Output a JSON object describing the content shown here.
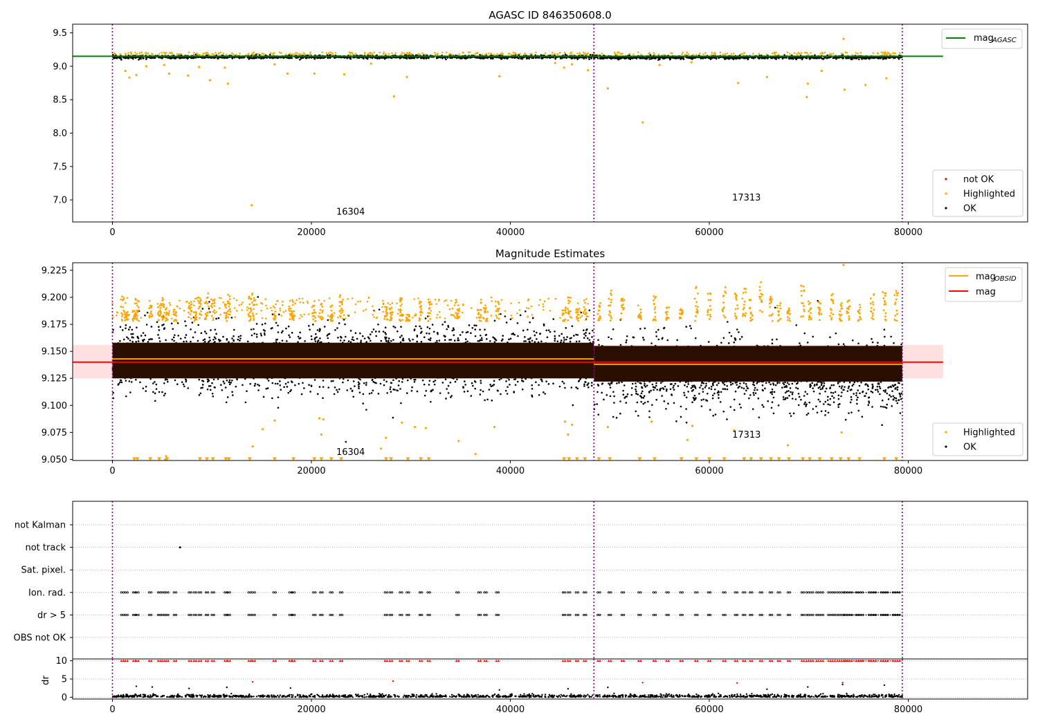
{
  "title": "AGASC ID 846350608.0",
  "chart_data": [
    {
      "type": "scatter",
      "title": "AGASC ID 846350608.0",
      "xlim": [
        -4000,
        92000
      ],
      "ylim": [
        6.67,
        9.63
      ],
      "x_ticks": [
        0,
        20000,
        40000,
        60000,
        80000
      ],
      "y_ticks": [
        7.0,
        7.5,
        8.0,
        8.5,
        9.0,
        9.5
      ],
      "obsid_boundaries": [
        0,
        48400,
        79400
      ],
      "obsid_labels": [
        {
          "text": "16304",
          "x": 22500,
          "y": 6.78
        },
        {
          "text": "17313",
          "x": 62300,
          "y": 6.99
        }
      ],
      "lines": [
        {
          "name": "mag_AGASC",
          "label_main": "mag",
          "label_sub": "AGASC",
          "color": "#008000",
          "x": [
            -4000,
            83500
          ],
          "y": [
            9.15,
            9.15
          ]
        }
      ],
      "series": [
        {
          "name": "not OK",
          "color": "#ff0000",
          "points": []
        },
        {
          "name": "Highlighted",
          "color": "#ffa500",
          "points": [
            [
              1300,
              8.93
            ],
            [
              1700,
              8.83
            ],
            [
              2400,
              8.87
            ],
            [
              3400,
              9.0
            ],
            [
              5200,
              9.02
            ],
            [
              5700,
              8.89
            ],
            [
              7600,
              8.86
            ],
            [
              8700,
              8.99
            ],
            [
              9800,
              8.79
            ],
            [
              11300,
              8.98
            ],
            [
              11600,
              8.74
            ],
            [
              14000,
              6.92
            ],
            [
              16300,
              9.03
            ],
            [
              17600,
              8.89
            ],
            [
              20300,
              8.89
            ],
            [
              23300,
              8.88
            ],
            [
              26000,
              9.04
            ],
            [
              28300,
              8.55
            ],
            [
              29600,
              8.84
            ],
            [
              38900,
              8.85
            ],
            [
              44500,
              9.05
            ],
            [
              45400,
              8.98
            ],
            [
              46200,
              9.03
            ],
            [
              47800,
              8.94
            ],
            [
              49800,
              8.67
            ],
            [
              53300,
              8.16
            ],
            [
              55000,
              9.02
            ],
            [
              58200,
              9.06
            ],
            [
              62900,
              8.75
            ],
            [
              65800,
              8.84
            ],
            [
              69800,
              8.54
            ],
            [
              69900,
              8.74
            ],
            [
              71300,
              8.93
            ],
            [
              73500,
              9.41
            ],
            [
              73600,
              8.65
            ],
            [
              75700,
              8.72
            ],
            [
              77800,
              8.82
            ]
          ]
        },
        {
          "name": "OK",
          "color": "#000000",
          "points": []
        }
      ],
      "band": {
        "x0": 0,
        "x1": 79400,
        "y_low": 9.11,
        "y_high": 9.19
      },
      "legends": [
        {
          "position": "upper right",
          "entries": [
            "mag_AGASC"
          ]
        },
        {
          "position": "lower right",
          "entries": [
            "not OK",
            "Highlighted",
            "OK"
          ]
        }
      ]
    },
    {
      "type": "scatter",
      "title": "Magnitude Estimates",
      "xlim": [
        -4000,
        92000
      ],
      "ylim": [
        9.049,
        9.232
      ],
      "x_ticks": [
        0,
        20000,
        40000,
        60000,
        80000
      ],
      "y_ticks": [
        9.05,
        9.075,
        9.1,
        9.125,
        9.15,
        9.175,
        9.2,
        9.225
      ],
      "obsid_boundaries": [
        0,
        48400,
        79400
      ],
      "obsid_labels": [
        {
          "text": "16304",
          "x": 22500,
          "y": 9.054
        },
        {
          "text": "17313",
          "x": 62300,
          "y": 9.07
        }
      ],
      "mag": {
        "value": 9.14,
        "band": [
          9.125,
          9.156
        ],
        "x": [
          -4000,
          83500
        ],
        "color": "#ff0000"
      },
      "mag_obsid": [
        {
          "x": [
            0,
            48400
          ],
          "y": 9.143
        },
        {
          "x": [
            48400,
            79400
          ],
          "y": 9.138
        }
      ],
      "series": [
        {
          "name": "Highlighted",
          "color": "#ffa500",
          "points": [
            [
              5300,
              9.05
            ],
            [
              5400,
              9.053
            ],
            [
              15100,
              9.078
            ],
            [
              16300,
              9.086
            ],
            [
              20800,
              9.088
            ],
            [
              21200,
              9.087
            ],
            [
              21000,
              9.073
            ],
            [
              14100,
              9.062
            ],
            [
              27000,
              9.06
            ],
            [
              27500,
              9.07
            ],
            [
              29100,
              9.084
            ],
            [
              30400,
              9.08
            ],
            [
              31500,
              9.079
            ],
            [
              34800,
              9.067
            ],
            [
              36500,
              9.055
            ],
            [
              38400,
              9.08
            ],
            [
              45500,
              9.085
            ],
            [
              45800,
              9.073
            ],
            [
              46200,
              9.082
            ],
            [
              49800,
              9.08
            ],
            [
              54200,
              9.085
            ],
            [
              57800,
              9.068
            ],
            [
              58300,
              9.081
            ],
            [
              62500,
              9.077
            ],
            [
              67900,
              9.063
            ],
            [
              73300,
              9.075
            ],
            [
              73500,
              9.23
            ]
          ]
        },
        {
          "name": "OK",
          "color": "#000000",
          "points": []
        }
      ],
      "legends": [
        {
          "position": "upper right",
          "entries": [
            "mag_OBSID",
            "mag"
          ],
          "mag_obsid_label_main": "mag",
          "mag_obsid_label_sub": "OBSID",
          "mag_label": "mag"
        },
        {
          "position": "lower right",
          "entries": [
            "Highlighted",
            "OK"
          ]
        }
      ]
    },
    {
      "type": "scatter",
      "title": "",
      "xlim": [
        -4000,
        92000
      ],
      "categories": [
        "not Kalman",
        "not track",
        "Sat. pixel.",
        "Ion. rad.",
        "dr > 5",
        "OBS not OK"
      ],
      "flag_points": [
        {
          "category": "not track",
          "x": 6800
        }
      ],
      "obsid_boundaries": [
        0,
        48400,
        79400
      ]
    },
    {
      "type": "scatter",
      "xlim": [
        -4000,
        92000
      ],
      "ylim": [
        -0.5,
        10.5
      ],
      "ylabel": "dr",
      "x_ticks": [
        0,
        20000,
        40000,
        60000,
        80000
      ],
      "y_ticks": [
        0,
        5,
        10
      ],
      "obsid_boundaries": [
        0,
        48400,
        79400
      ],
      "outliers": [
        [
          2400,
          3.0
        ],
        [
          4000,
          2.8
        ],
        [
          7700,
          2.4
        ],
        [
          11500,
          2.7
        ],
        [
          14100,
          4.2
        ],
        [
          17900,
          2.5
        ],
        [
          28200,
          4.4
        ],
        [
          38900,
          2.0
        ],
        [
          45800,
          2.3
        ],
        [
          49800,
          2.7
        ],
        [
          53300,
          4.0
        ],
        [
          62800,
          3.9
        ],
        [
          65800,
          2.2
        ],
        [
          69900,
          2.8
        ],
        [
          73400,
          3.5
        ],
        [
          73400,
          4.0
        ],
        [
          77600,
          3.3
        ]
      ]
    }
  ],
  "clusters_obs1": [
    1000,
    1400,
    2200,
    2500,
    3800,
    4700,
    5100,
    5500,
    6300,
    7800,
    8300,
    8800,
    9500,
    10100,
    11400,
    11700,
    13800,
    14200,
    16300,
    17900,
    18200,
    20300,
    21000,
    22000,
    23000,
    27500,
    28000,
    29000,
    29700,
    31000,
    31800,
    34700,
    36900,
    37500,
    38700,
    45400,
    45900,
    46700,
    47500
  ],
  "clusters_obs2": [
    48900,
    50000,
    51300,
    53000,
    54500,
    55800,
    57200,
    58700,
    60000,
    61500,
    62700,
    63500,
    64200,
    65200,
    66200,
    67000,
    68000,
    69400,
    70100,
    71100,
    72300,
    73200,
    74000,
    75100,
    76400,
    77600,
    78800
  ]
}
